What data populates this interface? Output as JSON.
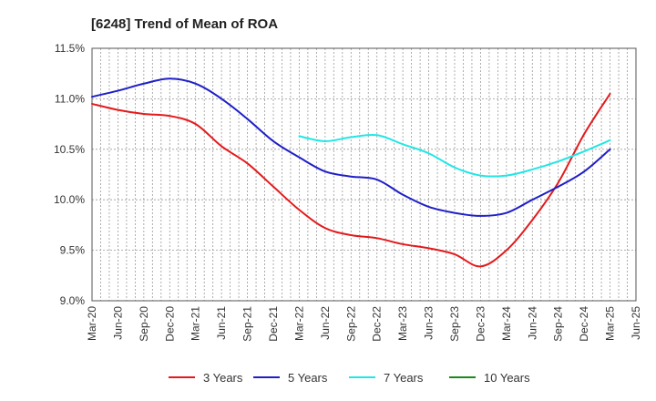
{
  "chart_data": {
    "type": "line",
    "title": "[6248]  Trend of Mean of ROA",
    "xlabel": "",
    "ylabel": "",
    "ylim": [
      9.0,
      11.5
    ],
    "yticks": [
      "11.5%",
      "11.0%",
      "10.5%",
      "10.0%",
      "9.5%",
      "9.0%"
    ],
    "ytick_values": [
      11.5,
      11.0,
      10.5,
      10.0,
      9.5,
      9.0
    ],
    "categories": [
      "Mar-20",
      "Jun-20",
      "Sep-20",
      "Dec-20",
      "Mar-21",
      "Jun-21",
      "Sep-21",
      "Dec-21",
      "Mar-22",
      "Jun-22",
      "Sep-22",
      "Dec-22",
      "Mar-23",
      "Jun-23",
      "Sep-23",
      "Dec-23",
      "Mar-24",
      "Jun-24",
      "Sep-24",
      "Dec-24",
      "Mar-25",
      "Jun-25"
    ],
    "grid": true,
    "legend_position": "bottom",
    "series": [
      {
        "name": "3 Years",
        "color": "#e31a1c",
        "values": [
          10.95,
          10.89,
          10.85,
          10.83,
          10.75,
          10.53,
          10.36,
          10.13,
          9.9,
          9.72,
          9.65,
          9.62,
          9.56,
          9.52,
          9.46,
          9.34,
          9.5,
          9.8,
          10.17,
          10.65,
          11.05,
          null
        ]
      },
      {
        "name": "5 Years",
        "color": "#1f1fc8",
        "values": [
          11.02,
          11.08,
          11.15,
          11.2,
          11.15,
          11.0,
          10.8,
          10.58,
          10.42,
          10.28,
          10.23,
          10.2,
          10.05,
          9.93,
          9.87,
          9.84,
          9.87,
          10.0,
          10.13,
          10.28,
          10.5,
          null
        ]
      },
      {
        "name": "7 Years",
        "color": "#22e6e6",
        "values": [
          null,
          null,
          null,
          null,
          null,
          null,
          null,
          null,
          10.63,
          10.58,
          10.62,
          10.64,
          10.55,
          10.46,
          10.32,
          10.24,
          10.24,
          10.3,
          10.38,
          10.48,
          10.59,
          null
        ]
      },
      {
        "name": "10 Years",
        "color": "#1a8a1a",
        "values": [
          null,
          null,
          null,
          null,
          null,
          null,
          null,
          null,
          null,
          null,
          null,
          null,
          null,
          null,
          null,
          null,
          null,
          null,
          null,
          null,
          null,
          null
        ]
      }
    ]
  }
}
